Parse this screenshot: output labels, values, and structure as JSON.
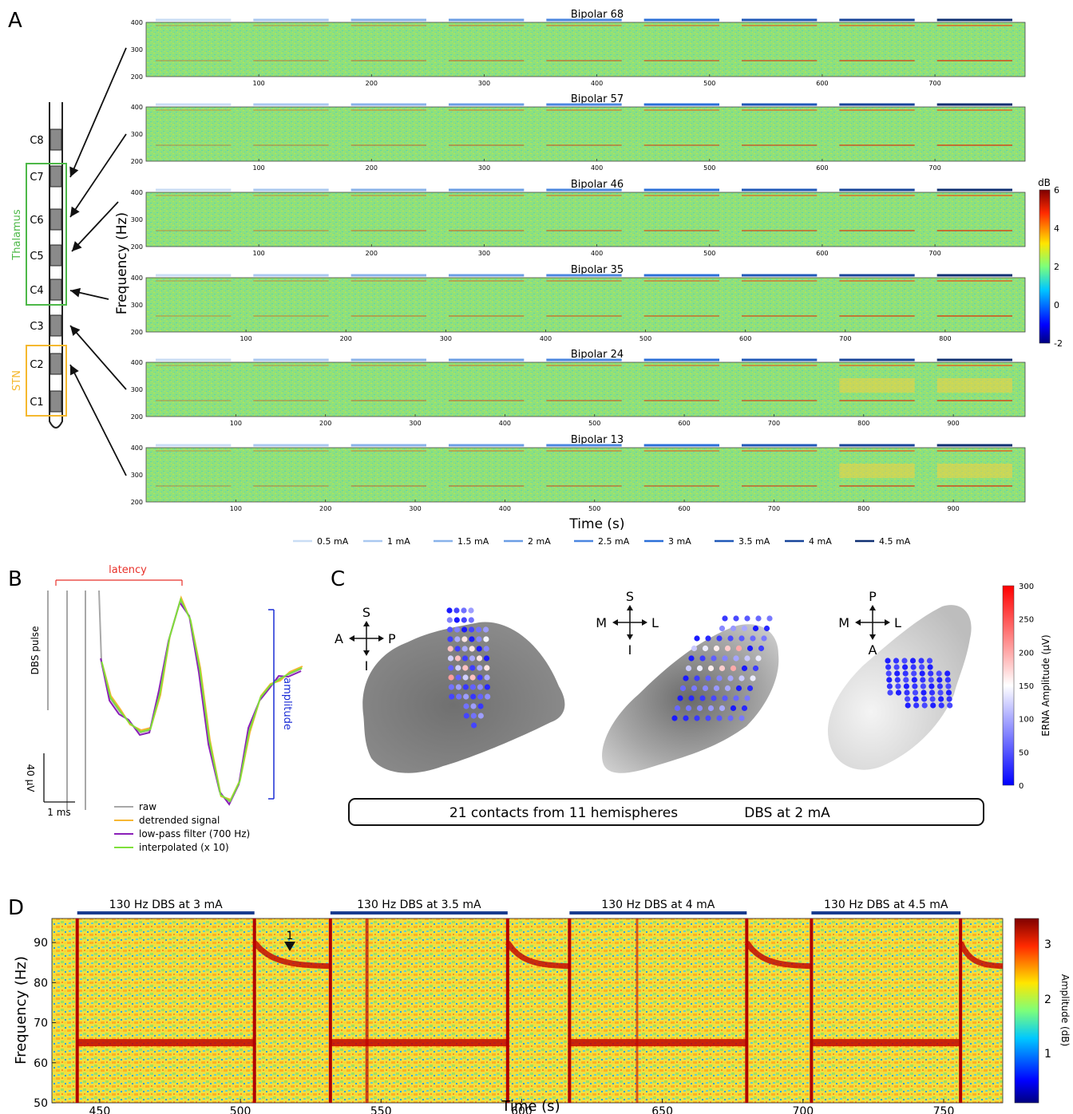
{
  "panels": {
    "a": "A",
    "b": "B",
    "c": "C",
    "d": "D"
  },
  "lead": {
    "contacts": [
      "C8",
      "C7",
      "C6",
      "C5",
      "C4",
      "C3",
      "C2",
      "C1"
    ],
    "thalamus_label": "Thalamus",
    "stn_label": "STN",
    "thalamus_color": "#4db848",
    "stn_color": "#f5b82e"
  },
  "spectrograms": {
    "ylabel": "Frequency (Hz)",
    "xlabel": "Time (s)",
    "yticks": [
      "200",
      "300",
      "400"
    ],
    "colorbar_title": "dB",
    "colorbar_ticks": [
      "6",
      "4",
      "2",
      "0",
      "-2"
    ],
    "rows": [
      {
        "title": "Bipolar 68",
        "xticks": [
          "100",
          "200",
          "300",
          "400",
          "500",
          "600",
          "700"
        ]
      },
      {
        "title": "Bipolar 57",
        "xticks": [
          "100",
          "200",
          "300",
          "400",
          "500",
          "600",
          "700"
        ]
      },
      {
        "title": "Bipolar 46",
        "xticks": [
          "100",
          "200",
          "300",
          "400",
          "500",
          "600",
          "700"
        ]
      },
      {
        "title": "Bipolar 35",
        "xticks": [
          "100",
          "200",
          "300",
          "400",
          "500",
          "600",
          "700",
          "800"
        ]
      },
      {
        "title": "Bipolar 24",
        "xticks": [
          "100",
          "200",
          "300",
          "400",
          "500",
          "600",
          "700",
          "800",
          "900"
        ]
      },
      {
        "title": "Bipolar 13",
        "xticks": [
          "100",
          "200",
          "300",
          "400",
          "500",
          "600",
          "700",
          "800",
          "900"
        ]
      }
    ],
    "legend": [
      "0.5 mA",
      "1 mA",
      "1.5 mA",
      "2 mA",
      "2.5 mA",
      "3 mA",
      "3.5 mA",
      "4 mA",
      "4.5 mA"
    ],
    "legend_colors": [
      "#c9ddf5",
      "#a9c8f0",
      "#88b2ea",
      "#6a9de5",
      "#4a86e0",
      "#2a6fd8",
      "#1f58b8",
      "#17449a",
      "#0e2f72"
    ]
  },
  "panel_b": {
    "latency_label": "latency",
    "amplitude_label": "amplitude",
    "pulse_label": "DBS pulse",
    "scale_v": "40 μV",
    "scale_t": "1 ms",
    "legend": [
      {
        "label": "raw",
        "color": "#a8a8a8"
      },
      {
        "label": "detrended signal",
        "color": "#f7b733"
      },
      {
        "label": "low-pass filter (700 Hz)",
        "color": "#8a1fb8"
      },
      {
        "label": "interpolated (x 10)",
        "color": "#7ee03a"
      }
    ]
  },
  "panel_c": {
    "views": [
      {
        "up": "S",
        "down": "I",
        "left": "A",
        "right": "P"
      },
      {
        "up": "S",
        "down": "I",
        "left": "M",
        "right": "L"
      },
      {
        "up": "P",
        "down": "A",
        "left": "M",
        "right": "L"
      }
    ],
    "colorbar_label": "ERNA Amplitude (μV)",
    "colorbar_ticks": [
      "300",
      "250",
      "200",
      "150",
      "100",
      "50",
      "0"
    ],
    "caption_left": "21 contacts from 11 hemispheres",
    "caption_right": "DBS at 2 mA"
  },
  "panel_d": {
    "ylabel": "Frequency (Hz)",
    "xlabel": "Time (s)",
    "yticks": [
      "50",
      "60",
      "70",
      "80",
      "90"
    ],
    "xticks": [
      "450",
      "500",
      "550",
      "600",
      "650",
      "700",
      "750"
    ],
    "blocks": [
      "130 Hz DBS at 3 mA",
      "130 Hz DBS at 3.5 mA",
      "130 Hz DBS at 4 mA",
      "130 Hz DBS at 4.5 mA"
    ],
    "arrow_label": "1",
    "colorbar_label": "Amplitude (dB)",
    "colorbar_ticks": [
      "3",
      "2",
      "1"
    ]
  }
}
